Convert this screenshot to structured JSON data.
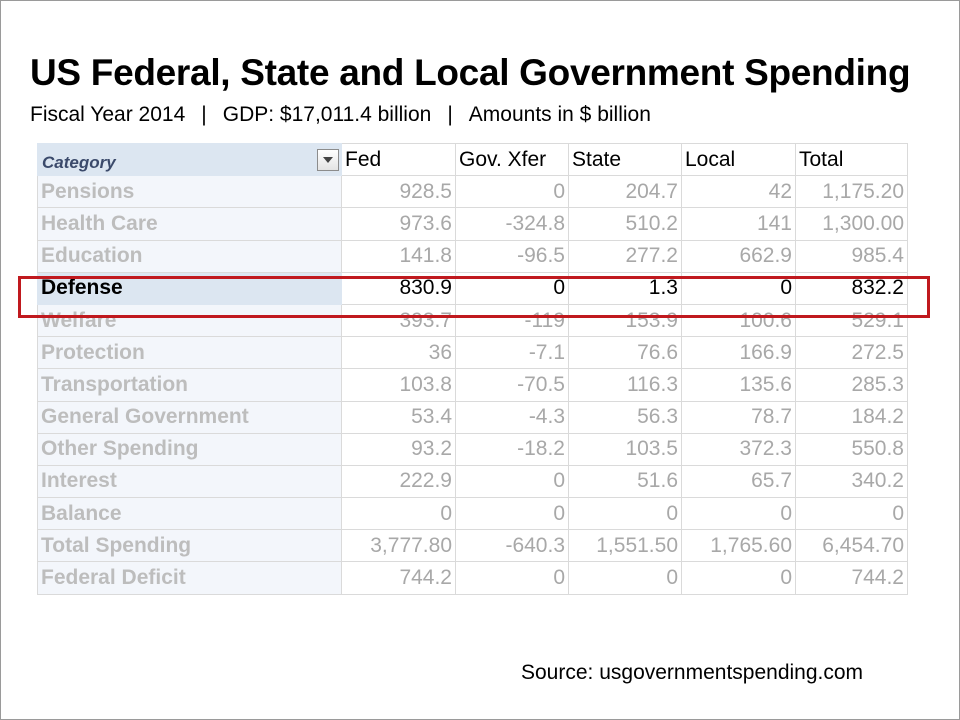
{
  "title": "US Federal, State and Local Government Spending",
  "subtitle": {
    "fiscal_year": "Fiscal Year 2014",
    "separator": "|",
    "gdp": "GDP: $17,011.4 billion",
    "units": "Amounts in $ billion"
  },
  "source": "Source: usgovernmentspending.com",
  "colors": {
    "highlight_border": "#c0191e",
    "header_fill": "#dce6f1",
    "dimmed_text": "#a8a8a8"
  },
  "filter_icon": "dropdown-arrow-icon",
  "highlighted_row": "Defense",
  "chart_data": {
    "type": "table",
    "columns": [
      "Category",
      "Fed",
      "Gov. Xfer",
      "State",
      "Local",
      "Total"
    ],
    "rows": [
      [
        "Pensions",
        "928.5",
        "0",
        "204.7",
        "42",
        "1,175.20"
      ],
      [
        "Health Care",
        "973.6",
        "-324.8",
        "510.2",
        "141",
        "1,300.00"
      ],
      [
        "Education",
        "141.8",
        "-96.5",
        "277.2",
        "662.9",
        "985.4"
      ],
      [
        "Defense",
        "830.9",
        "0",
        "1.3",
        "0",
        "832.2"
      ],
      [
        "Welfare",
        "393.7",
        "-119",
        "153.9",
        "100.6",
        "529.1"
      ],
      [
        "Protection",
        "36",
        "-7.1",
        "76.6",
        "166.9",
        "272.5"
      ],
      [
        "Transportation",
        "103.8",
        "-70.5",
        "116.3",
        "135.6",
        "285.3"
      ],
      [
        "General Government",
        "53.4",
        "-4.3",
        "56.3",
        "78.7",
        "184.2"
      ],
      [
        "Other Spending",
        "93.2",
        "-18.2",
        "103.5",
        "372.3",
        "550.8"
      ],
      [
        "Interest",
        "222.9",
        "0",
        "51.6",
        "65.7",
        "340.2"
      ],
      [
        "Balance",
        "0",
        "0",
        "0",
        "0",
        "0"
      ],
      [
        "Total Spending",
        "3,777.80",
        "-640.3",
        "1,551.50",
        "1,765.60",
        "6,454.70"
      ],
      [
        "Federal Deficit",
        "744.2",
        "0",
        "0",
        "0",
        "744.2"
      ]
    ]
  }
}
